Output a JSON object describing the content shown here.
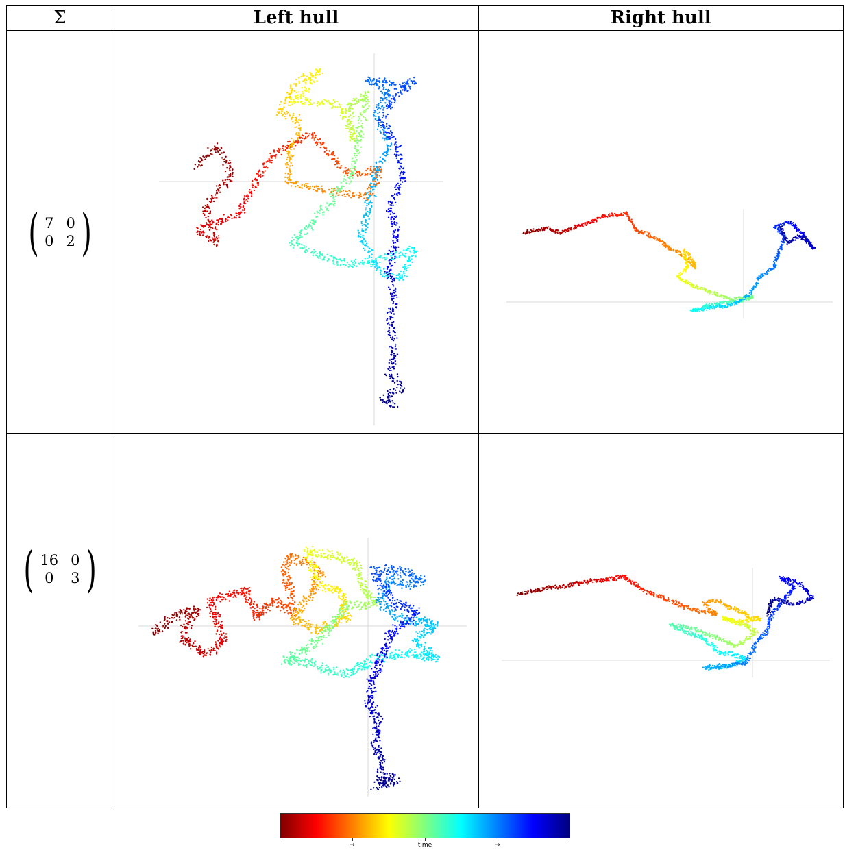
{
  "table": {
    "headers": [
      "Σ",
      "Left hull",
      "Right hull"
    ],
    "rows": [
      {
        "matrix": [
          "7",
          "0",
          "0",
          "2"
        ]
      },
      {
        "matrix": [
          "16",
          "0",
          "0",
          "3"
        ]
      }
    ]
  },
  "colorbar": {
    "colors": [
      "#7f0000",
      "#ff0000",
      "#ff8000",
      "#ffff00",
      "#80ff80",
      "#00ffff",
      "#0080ff",
      "#0000ff",
      "#00007f"
    ],
    "labels": [
      "→",
      "time",
      "→"
    ]
  }
}
